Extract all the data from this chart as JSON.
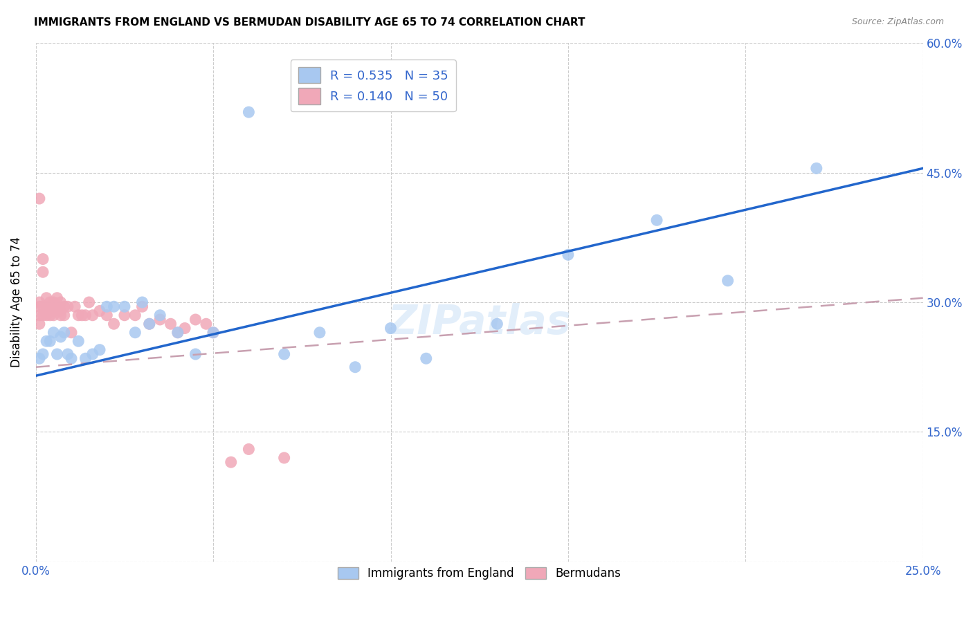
{
  "title": "IMMIGRANTS FROM ENGLAND VS BERMUDAN DISABILITY AGE 65 TO 74 CORRELATION CHART",
  "source": "Source: ZipAtlas.com",
  "ylabel": "Disability Age 65 to 74",
  "xlim": [
    0.0,
    0.25
  ],
  "ylim": [
    0.0,
    0.6
  ],
  "xtick_positions": [
    0.0,
    0.05,
    0.1,
    0.15,
    0.2,
    0.25
  ],
  "xtick_labels": [
    "0.0%",
    "",
    "",
    "",
    "",
    "25.0%"
  ],
  "ytick_positions": [
    0.0,
    0.15,
    0.3,
    0.45,
    0.6
  ],
  "ytick_labels_right": [
    "",
    "15.0%",
    "30.0%",
    "45.0%",
    "60.0%"
  ],
  "legend_labels_bottom": [
    "Immigrants from England",
    "Bermudans"
  ],
  "england_color": "#a8c8f0",
  "bermuda_color": "#f0a8b8",
  "england_line_color": "#2266cc",
  "bermuda_line_color": "#c8a0b0",
  "england_R": 0.535,
  "england_N": 35,
  "bermuda_R": 0.14,
  "bermuda_N": 50,
  "england_points_x": [
    0.001,
    0.002,
    0.003,
    0.004,
    0.005,
    0.006,
    0.007,
    0.008,
    0.009,
    0.01,
    0.012,
    0.014,
    0.016,
    0.018,
    0.02,
    0.022,
    0.025,
    0.028,
    0.03,
    0.032,
    0.035,
    0.04,
    0.045,
    0.05,
    0.06,
    0.07,
    0.08,
    0.09,
    0.1,
    0.11,
    0.13,
    0.15,
    0.175,
    0.195,
    0.22
  ],
  "england_points_y": [
    0.235,
    0.24,
    0.255,
    0.255,
    0.265,
    0.24,
    0.26,
    0.265,
    0.24,
    0.235,
    0.255,
    0.235,
    0.24,
    0.245,
    0.295,
    0.295,
    0.295,
    0.265,
    0.3,
    0.275,
    0.285,
    0.265,
    0.24,
    0.265,
    0.52,
    0.24,
    0.265,
    0.225,
    0.27,
    0.235,
    0.275,
    0.355,
    0.395,
    0.325,
    0.455
  ],
  "bermuda_points_x": [
    0.001,
    0.001,
    0.001,
    0.001,
    0.001,
    0.002,
    0.002,
    0.002,
    0.002,
    0.003,
    0.003,
    0.003,
    0.004,
    0.004,
    0.004,
    0.005,
    0.005,
    0.005,
    0.006,
    0.006,
    0.007,
    0.007,
    0.007,
    0.008,
    0.008,
    0.009,
    0.01,
    0.011,
    0.012,
    0.013,
    0.014,
    0.015,
    0.016,
    0.018,
    0.02,
    0.022,
    0.025,
    0.028,
    0.03,
    0.032,
    0.035,
    0.038,
    0.04,
    0.042,
    0.045,
    0.048,
    0.05,
    0.055,
    0.06,
    0.07
  ],
  "bermuda_points_y": [
    0.42,
    0.3,
    0.295,
    0.285,
    0.275,
    0.35,
    0.335,
    0.295,
    0.285,
    0.305,
    0.295,
    0.285,
    0.3,
    0.295,
    0.285,
    0.3,
    0.29,
    0.285,
    0.305,
    0.295,
    0.3,
    0.29,
    0.285,
    0.295,
    0.285,
    0.295,
    0.265,
    0.295,
    0.285,
    0.285,
    0.285,
    0.3,
    0.285,
    0.29,
    0.285,
    0.275,
    0.285,
    0.285,
    0.295,
    0.275,
    0.28,
    0.275,
    0.265,
    0.27,
    0.28,
    0.275,
    0.265,
    0.115,
    0.13,
    0.12
  ],
  "england_line_x0": 0.0,
  "england_line_y0": 0.215,
  "england_line_x1": 0.25,
  "england_line_y1": 0.455,
  "bermuda_line_x0": 0.0,
  "bermuda_line_y0": 0.225,
  "bermuda_line_x1": 0.25,
  "bermuda_line_y1": 0.305
}
